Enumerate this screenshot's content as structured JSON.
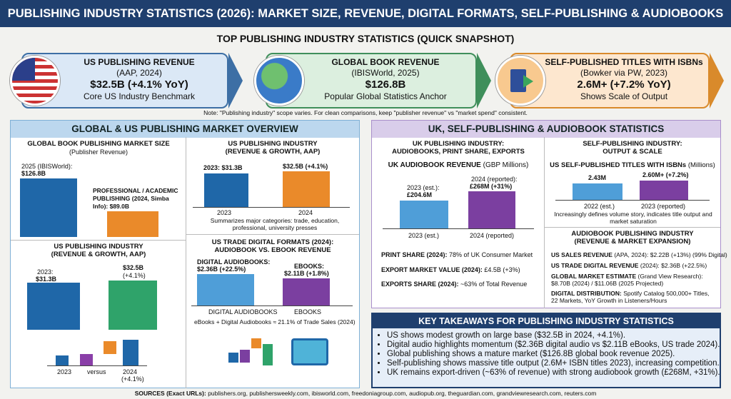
{
  "header": {
    "title": "PUBLISHING INDUSTRY STATISTICS (2026): MARKET SIZE, REVENUE, DIGITAL FORMATS, SELF-PUBLISHING & AUDIOBOOKS"
  },
  "snapshot": {
    "title": "TOP PUBLISHING INDUSTRY STATISTICS (QUICK SNAPSHOT)",
    "cards": [
      {
        "title": "US PUBLISHING REVENUE",
        "source": "(AAP, 2024)",
        "value": "$32.5B (+4.1% YoY)",
        "caption": "Core US Industry Benchmark",
        "icon": "us-flag-icon",
        "color": "#9fc5e8"
      },
      {
        "title": "GLOBAL BOOK REVENUE",
        "source": "(IBISWorld, 2025)",
        "value": "$126.8B",
        "caption": "Popular Global Statistics Anchor",
        "icon": "globe-icon",
        "color": "#a9d8b8"
      },
      {
        "title": "SELF-PUBLISHED TITLES WITH ISBNs",
        "source": "(Bowker via PW, 2023)",
        "value": "2.6M+ (+7.2% YoY)",
        "caption": "Shows Scale of Output",
        "icon": "book-export-icon",
        "color": "#f6b26b"
      }
    ],
    "note": "Note: \"Publishing industry\" scope varies. For clean comparisons, keep \"publisher revenue\" vs \"market spend\" consistent."
  },
  "left": {
    "title": "GLOBAL & US PUBLISHING MARKET OVERVIEW",
    "global": {
      "title": "GLOBAL BOOK PUBLISHING MARKET SIZE",
      "subtitle": "(Publisher Revenue)",
      "bar1_label": "2025 (IBISWorld):",
      "bar1_value": "$126.8B",
      "bar2_label": "PROFESSIONAL / ACADEMIC PUBLISHING (2024, Simba Info): $89.0B"
    },
    "us_top": {
      "title": "US PUBLISHING INDUSTRY",
      "subtitle": "(REVENUE & GROWTH, AAP)",
      "bar1_value": "2023: $31.3B",
      "bar2_value": "$32.5B (+4.1%)",
      "x1": "2023",
      "x2": "2024",
      "caption": "Summarizes major categories: trade, education, professional, university presses"
    },
    "us_bottom": {
      "title": "US PUBLISHING INDUSTRY",
      "subtitle": "(REVENUE & GROWTH, AAP)",
      "bar1_label": "2023:",
      "bar1_value": "$31.3B",
      "bar2_value": "$32.5B",
      "bar2_change": "(+4.1%)",
      "x1": "2023",
      "x2": "versus",
      "x3": "2024",
      "x3b": "(+4.1%)"
    },
    "digital": {
      "title": "US TRADE DIGITAL FORMATS (2024):",
      "subtitle": "AUDIOBOOK VS. EBOOK REVENUE",
      "bar1_label": "DIGITAL AUDIOBOOKS:",
      "bar1_value": "$2.36B (+22.5%)",
      "bar2_label": "EBOOKS:",
      "bar2_value": "$2.11B (+1.8%)",
      "x1": "DIGITAL AUDIOBOOKS",
      "x2": "EBOOKS",
      "caption": "eBooks + Digital Audiobooks ≈ 21.1% of Trade Sales (2024)"
    }
  },
  "right": {
    "title": "UK, SELF-PUBLISHING & AUDIOBOOK STATISTICS",
    "uk": {
      "title": "UK PUBLISHING INDUSTRY:",
      "subtitle": "AUDIOBOOKS, PRINT SHARE, EXPORTS",
      "chart_title": "UK AUDIOBOOK REVENUE",
      "chart_unit": "(GBP Millions)",
      "bar1_label": "2023 (est.):",
      "bar1_value": "£204.6M",
      "bar2_label": "2024 (reported):",
      "bar2_value": "£268M (+31%)",
      "x1": "2023 (est.)",
      "x2": "2024 (reported)",
      "facts": [
        {
          "k": "PRINT SHARE (2024):",
          "v": "78% of UK Consumer Market"
        },
        {
          "k": "EXPORT MARKET VALUE (2024):",
          "v": "£4.5B (+3%)"
        },
        {
          "k": "EXPORTS SHARE (2024):",
          "v": "~63% of Total Revenue"
        }
      ]
    },
    "self": {
      "title": "SELF-PUBLISHING INDUSTRY:",
      "subtitle": "OUTPUT & SCALE",
      "chart_title": "US SELF-PUBLISHED TITLES WITH ISBNs",
      "chart_unit": "(Millions)",
      "bar1_value": "2.43M",
      "bar2_value": "2.60M+ (+7.2%)",
      "x1": "2022 (est.)",
      "x2": "2023 (reported)",
      "caption": "Increasingly defines volume story, indicates title output and market saturation"
    },
    "audio": {
      "title": "AUDIOBOOK PUBLISHING INDUSTRY",
      "subtitle": "(REVENUE & MARKET EXPANSION)",
      "facts": [
        {
          "k": "US SALES REVENUE",
          "v": "(APA, 2024): $2.22B (+13%) (99% Digital)"
        },
        {
          "k": "US TRADE DIGITAL REVENUE",
          "v": "(2024): $2.36B (+22.5%)"
        },
        {
          "k": "GLOBAL MARKET ESTIMATE",
          "v": "(Grand View Research): $8.70B (2024) / $11.06B (2025 Projected)"
        },
        {
          "k": "DIGITAL DISTRIBUTION:",
          "v": "Spotify Catalog 500,000+ Titles, 22 Markets, YoY Growth in Listeners/Hours"
        }
      ]
    }
  },
  "takeaways": {
    "title": "KEY TAKEAWAYS FOR PUBLISHING INDUSTRY STATISTICS",
    "items": [
      "US shows modest growth on large base ($32.5B in 2024, +4.1%).",
      "Digital audio highlights momentum ($2.36B digital audio vs $2.11B eBooks, US trade 2024).",
      "Global publishing shows a mature market ($126.8B global book revenue 2025).",
      "Self-publishing shows massive title output (2.6M+ ISBN titles 2023), increasing competition.",
      "UK remains export-driven (~63% of revenue) with strong audiobook growth (£268M, +31%)."
    ]
  },
  "sources": {
    "label": "SOURCES (Exact URLs):",
    "text": "publishers.org, publishersweekly.com, ibisworld.com, freedoniagroup.com, audiopub.org, theguardian.com, grandviewresearch.com, reuters.com"
  }
}
